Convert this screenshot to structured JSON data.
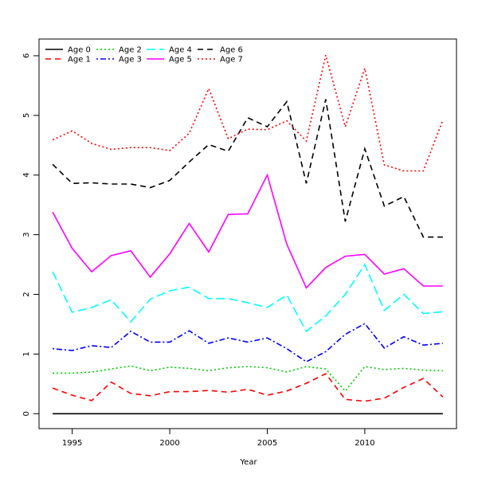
{
  "chart_data": {
    "type": "line",
    "xlabel": "Year",
    "ylabel": "",
    "xlim": [
      1993.3,
      2014.7
    ],
    "ylim": [
      -0.25,
      6.28
    ],
    "xticks": [
      1995,
      2000,
      2005,
      2010
    ],
    "yticks": [
      0,
      1,
      2,
      3,
      4,
      5,
      6
    ],
    "x": [
      1994,
      1995,
      1996,
      1997,
      1998,
      1999,
      2000,
      2001,
      2002,
      2003,
      2004,
      2005,
      2006,
      2007,
      2008,
      2009,
      2010,
      2011,
      2012,
      2013,
      2014
    ],
    "legend_position": "top-left",
    "series": [
      {
        "name": "Age 0",
        "color": "#000000",
        "dash": "solid",
        "values": [
          0,
          0,
          0,
          0,
          0,
          0,
          0,
          0,
          0,
          0,
          0,
          0,
          0,
          0,
          0,
          0,
          0,
          0,
          0,
          0,
          0
        ]
      },
      {
        "name": "Age 1",
        "color": "#ff0000",
        "dash": "dashed",
        "values": [
          0.43,
          0.31,
          0.22,
          0.53,
          0.34,
          0.3,
          0.37,
          0.37,
          0.39,
          0.36,
          0.41,
          0.31,
          0.38,
          0.51,
          0.67,
          0.24,
          0.21,
          0.26,
          0.44,
          0.59,
          0.28
        ]
      },
      {
        "name": "Age 2",
        "color": "#00cd00",
        "dash": "dotted",
        "values": [
          0.68,
          0.68,
          0.7,
          0.75,
          0.8,
          0.72,
          0.78,
          0.76,
          0.72,
          0.77,
          0.79,
          0.77,
          0.7,
          0.79,
          0.75,
          0.38,
          0.79,
          0.74,
          0.76,
          0.73,
          0.72
        ]
      },
      {
        "name": "Age 3",
        "color": "#0000ff",
        "dash": "dashdot",
        "values": [
          1.09,
          1.06,
          1.14,
          1.11,
          1.38,
          1.2,
          1.2,
          1.39,
          1.18,
          1.27,
          1.2,
          1.27,
          1.09,
          0.87,
          1.04,
          1.33,
          1.51,
          1.1,
          1.29,
          1.15,
          1.18
        ]
      },
      {
        "name": "Age 4",
        "color": "#00ffff",
        "dash": "longdash",
        "values": [
          2.38,
          1.7,
          1.78,
          1.91,
          1.54,
          1.92,
          2.06,
          2.12,
          1.93,
          1.93,
          1.86,
          1.78,
          1.99,
          1.38,
          1.64,
          2.0,
          2.5,
          1.73,
          2.0,
          1.68,
          1.71
        ]
      },
      {
        "name": "Age 5",
        "color": "#ff00ff",
        "dash": "solid",
        "values": [
          3.38,
          2.77,
          2.38,
          2.65,
          2.73,
          2.29,
          2.68,
          3.19,
          2.71,
          3.34,
          3.35,
          4.0,
          2.84,
          2.11,
          2.45,
          2.64,
          2.67,
          2.34,
          2.43,
          2.14,
          2.14
        ]
      },
      {
        "name": "Age 6",
        "color": "#000000",
        "dash": "dashed",
        "values": [
          4.18,
          3.86,
          3.87,
          3.85,
          3.85,
          3.79,
          3.91,
          4.22,
          4.51,
          4.4,
          4.96,
          4.81,
          5.23,
          3.86,
          5.27,
          3.22,
          4.44,
          3.48,
          3.64,
          2.96,
          2.96
        ]
      },
      {
        "name": "Age 7",
        "color": "#ff0000",
        "dash": "dotted",
        "values": [
          4.59,
          4.74,
          4.53,
          4.43,
          4.46,
          4.46,
          4.41,
          4.7,
          5.45,
          4.61,
          4.77,
          4.76,
          4.91,
          4.57,
          6.01,
          4.81,
          5.79,
          4.17,
          4.07,
          4.07,
          4.92
        ]
      }
    ]
  }
}
